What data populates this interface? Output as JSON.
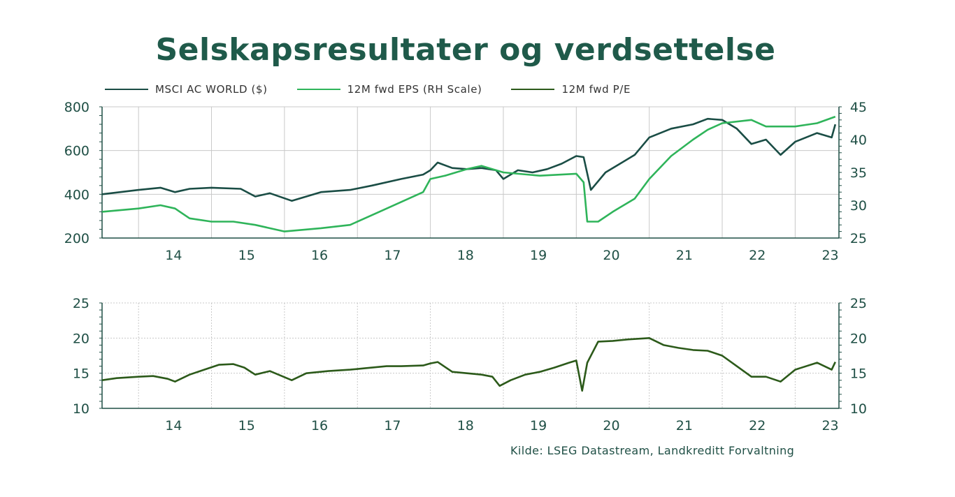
{
  "title": "Selskapsresultater og verdsettelse",
  "source": "Kilde: LSEG Datastream, Landkreditt Forvaltning",
  "colors": {
    "msci": "#1a4d45",
    "eps": "#2fb45a",
    "pe": "#2c5a1a",
    "axis": "#1f4f45",
    "grid": "#c8c8c8",
    "text": "#1f4f45"
  },
  "legend": [
    {
      "label": "MSCI AC WORLD ($)",
      "color": "#1a4d45"
    },
    {
      "label": "12M fwd EPS (RH Scale)",
      "color": "#2fb45a"
    },
    {
      "label": "12M fwd P/E",
      "color": "#2c5a1a"
    }
  ],
  "chart_data": [
    {
      "type": "line",
      "title": "",
      "x_range": [
        2013.5,
        2023.6
      ],
      "x_ticks": [
        2014,
        2015,
        2016,
        2017,
        2018,
        2019,
        2020,
        2021,
        2022,
        2023
      ],
      "x_tick_labels": [
        "14",
        "15",
        "16",
        "17",
        "18",
        "19",
        "20",
        "21",
        "22",
        "23"
      ],
      "left_axis": {
        "range": [
          200,
          800
        ],
        "ticks": [
          "800",
          "600",
          "400",
          "200"
        ]
      },
      "right_axis": {
        "range": [
          25,
          45
        ],
        "ticks": [
          "45",
          "40",
          "35",
          "30",
          "25"
        ]
      },
      "grid": true,
      "series": [
        {
          "name": "MSCI AC WORLD ($)",
          "axis": "left",
          "x": [
            2013.5,
            2014.0,
            2014.3,
            2014.5,
            2014.7,
            2015.0,
            2015.4,
            2015.6,
            2015.8,
            2016.1,
            2016.5,
            2016.9,
            2017.2,
            2017.6,
            2017.9,
            2018.0,
            2018.1,
            2018.3,
            2018.5,
            2018.7,
            2018.9,
            2019.0,
            2019.2,
            2019.4,
            2019.6,
            2019.8,
            2020.0,
            2020.1,
            2020.2,
            2020.4,
            2020.6,
            2020.8,
            2021.0,
            2021.3,
            2021.6,
            2021.8,
            2022.0,
            2022.2,
            2022.4,
            2022.6,
            2022.8,
            2023.0,
            2023.3,
            2023.5,
            2023.55
          ],
          "y": [
            400,
            420,
            430,
            410,
            425,
            430,
            425,
            390,
            405,
            370,
            410,
            420,
            440,
            470,
            490,
            510,
            545,
            520,
            515,
            520,
            510,
            470,
            510,
            500,
            515,
            540,
            575,
            570,
            420,
            500,
            540,
            580,
            660,
            700,
            720,
            745,
            740,
            700,
            630,
            650,
            580,
            640,
            680,
            660,
            720
          ]
        },
        {
          "name": "12M fwd EPS (RH Scale)",
          "axis": "right",
          "x": [
            2013.5,
            2014.0,
            2014.3,
            2014.5,
            2014.7,
            2015.0,
            2015.3,
            2015.6,
            2016.0,
            2016.5,
            2016.9,
            2017.3,
            2017.6,
            2017.9,
            2018.0,
            2018.2,
            2018.5,
            2018.7,
            2019.0,
            2019.5,
            2020.0,
            2020.1,
            2020.15,
            2020.3,
            2020.5,
            2020.8,
            2021.0,
            2021.3,
            2021.6,
            2021.8,
            2022.0,
            2022.4,
            2022.6,
            2023.0,
            2023.3,
            2023.55
          ],
          "y": [
            29,
            29.5,
            30,
            29.5,
            28,
            27.5,
            27.5,
            27,
            26,
            26.5,
            27,
            29,
            30.5,
            32,
            34,
            34.5,
            35.5,
            36,
            35,
            34.5,
            34.8,
            33.5,
            27.5,
            27.5,
            29,
            31,
            34,
            37.5,
            40,
            41.5,
            42.5,
            43,
            42,
            42,
            42.5,
            43.5
          ]
        }
      ]
    },
    {
      "type": "line",
      "title": "",
      "x_range": [
        2013.5,
        2023.6
      ],
      "x_ticks": [
        2014,
        2015,
        2016,
        2017,
        2018,
        2019,
        2020,
        2021,
        2022,
        2023
      ],
      "x_tick_labels": [
        "14",
        "15",
        "16",
        "17",
        "18",
        "19",
        "20",
        "21",
        "22",
        "23"
      ],
      "left_axis": {
        "range": [
          10,
          25
        ],
        "ticks": [
          "25",
          "20",
          "15",
          "10"
        ]
      },
      "right_axis": {
        "range": [
          10,
          25
        ],
        "ticks": [
          "25",
          "20",
          "15",
          "10"
        ]
      },
      "grid": true,
      "series": [
        {
          "name": "12M fwd P/E",
          "axis": "left",
          "x": [
            2013.5,
            2013.7,
            2014.0,
            2014.2,
            2014.4,
            2014.5,
            2014.7,
            2014.9,
            2015.1,
            2015.3,
            2015.45,
            2015.6,
            2015.8,
            2016.1,
            2016.3,
            2016.6,
            2016.9,
            2017.1,
            2017.4,
            2017.6,
            2017.9,
            2018.0,
            2018.1,
            2018.3,
            2018.5,
            2018.7,
            2018.85,
            2018.95,
            2019.1,
            2019.3,
            2019.5,
            2019.7,
            2019.9,
            2020.0,
            2020.08,
            2020.15,
            2020.3,
            2020.5,
            2020.7,
            2021.0,
            2021.2,
            2021.4,
            2021.6,
            2021.8,
            2022.0,
            2022.2,
            2022.4,
            2022.6,
            2022.8,
            2023.0,
            2023.3,
            2023.5,
            2023.55
          ],
          "y": [
            14,
            14.3,
            14.5,
            14.6,
            14.2,
            13.8,
            14.8,
            15.5,
            16.2,
            16.3,
            15.8,
            14.8,
            15.3,
            14,
            15,
            15.3,
            15.5,
            15.7,
            16,
            16,
            16.1,
            16.4,
            16.6,
            15.2,
            15,
            14.8,
            14.5,
            13.2,
            14,
            14.8,
            15.2,
            15.8,
            16.5,
            16.8,
            12.5,
            16.5,
            19.5,
            19.6,
            19.8,
            20,
            19,
            18.6,
            18.3,
            18.2,
            17.5,
            16,
            14.5,
            14.5,
            13.8,
            15.5,
            16.5,
            15.5,
            16.6
          ]
        }
      ]
    }
  ]
}
